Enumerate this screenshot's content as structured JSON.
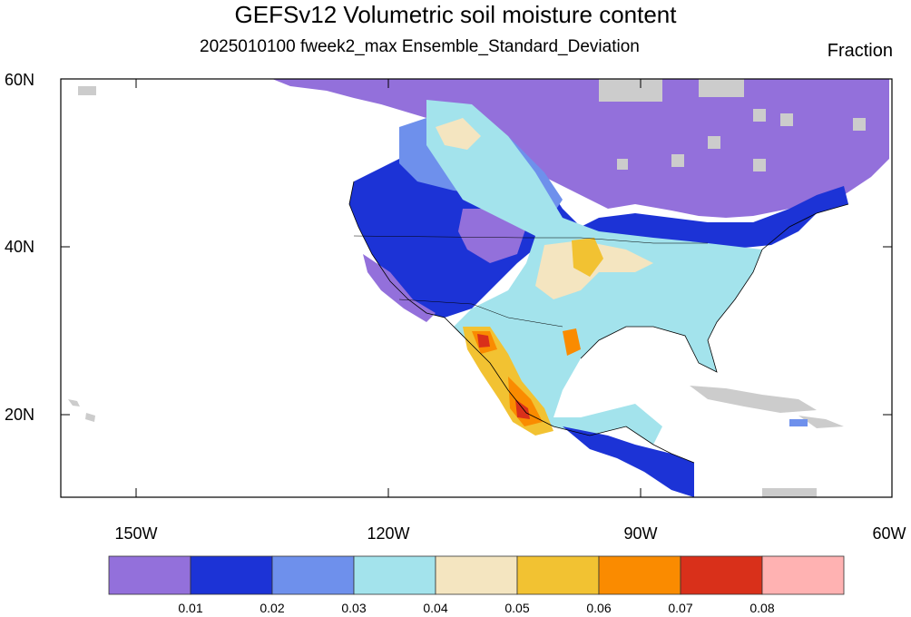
{
  "map": {
    "title": "GEFSv12 Volumetric soil moisture content",
    "subtitle": "2025010100 fweek2_max Ensemble_Standard_Deviation",
    "units": "Fraction",
    "extent": {
      "lon_min": -161,
      "lon_max": -61,
      "lat_min": 10,
      "lat_max": 60
    },
    "lat_ticks": [
      {
        "label": "60N",
        "value": 60
      },
      {
        "label": "40N",
        "value": 40
      },
      {
        "label": "20N",
        "value": 20
      }
    ],
    "lon_ticks": [
      {
        "label": "150W",
        "value": -150
      },
      {
        "label": "120W",
        "value": -120
      },
      {
        "label": "90W",
        "value": -90
      },
      {
        "label": "60W",
        "value": -60
      }
    ],
    "colorbar": {
      "colors": [
        "#9370db",
        "#1c33d6",
        "#6e90ec",
        "#a3e3ec",
        "#f4e5c0",
        "#f2c232",
        "#fa8b00",
        "#d9301a",
        "#ffb2b2"
      ],
      "labels": [
        "0.01",
        "0.02",
        "0.03",
        "0.04",
        "0.05",
        "0.06",
        "0.07",
        "0.08"
      ]
    },
    "no_data_color": "#cccccc"
  }
}
